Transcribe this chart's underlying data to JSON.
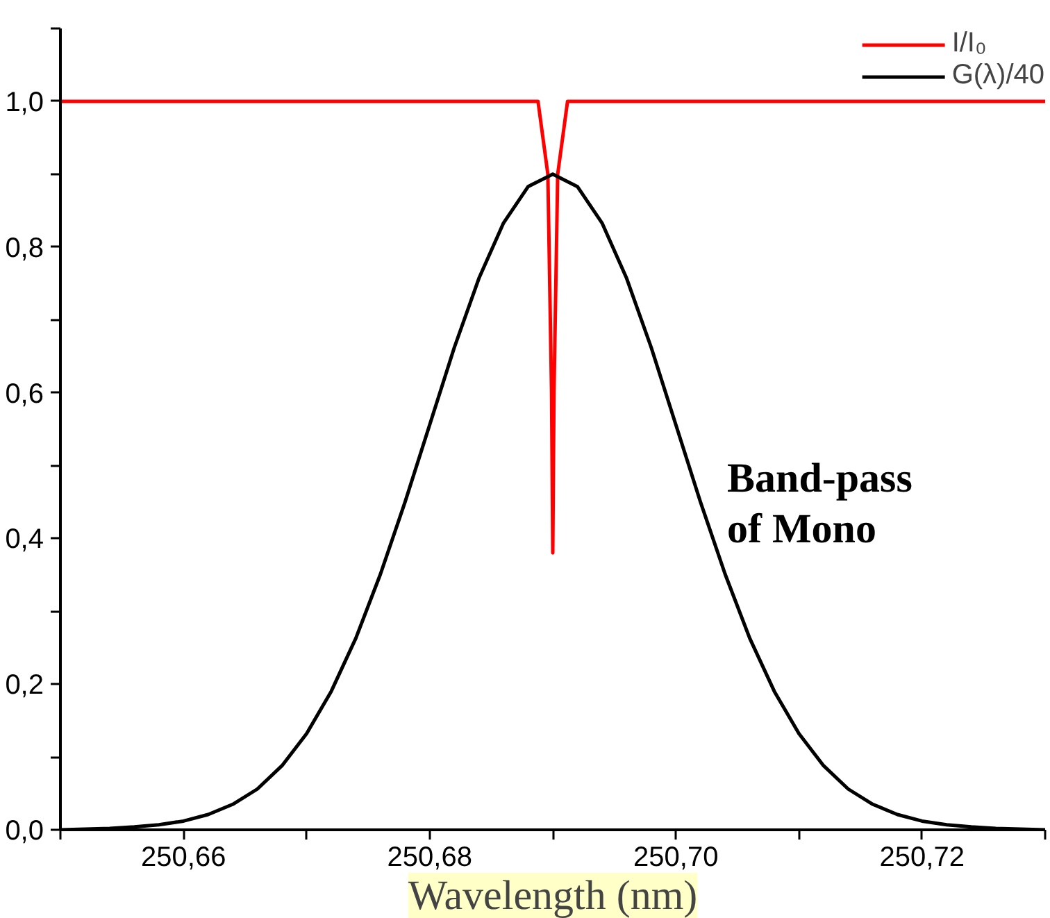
{
  "chart_data": {
    "type": "line",
    "xlabel": "Wavelength (nm)",
    "xlim": [
      250.65,
      250.73
    ],
    "ylim": [
      0,
      1.1
    ],
    "xticks": [
      {
        "value": 250.65,
        "label": null
      },
      {
        "value": 250.66,
        "label": "250,66"
      },
      {
        "value": 250.67,
        "label": null
      },
      {
        "value": 250.68,
        "label": "250,68"
      },
      {
        "value": 250.69,
        "label": null
      },
      {
        "value": 250.7,
        "label": "250,70"
      },
      {
        "value": 250.71,
        "label": null
      },
      {
        "value": 250.72,
        "label": "250,72"
      },
      {
        "value": 250.73,
        "label": null
      }
    ],
    "yticks": [
      {
        "value": 0,
        "label": "0,0"
      },
      {
        "value": 0.1,
        "label": null
      },
      {
        "value": 0.2,
        "label": "0,2"
      },
      {
        "value": 0.3,
        "label": null
      },
      {
        "value": 0.4,
        "label": "0,4"
      },
      {
        "value": 0.5,
        "label": null
      },
      {
        "value": 0.6,
        "label": "0,6"
      },
      {
        "value": 0.7,
        "label": null
      },
      {
        "value": 0.8,
        "label": "0,8"
      },
      {
        "value": 0.9,
        "label": null
      },
      {
        "value": 1.0,
        "label": "1,0"
      },
      {
        "value": 1.1,
        "label": null
      }
    ],
    "series": [
      {
        "name": "I/I₀",
        "color": "#ff0000",
        "x": [
          250.65,
          250.6888,
          250.6896,
          250.6899,
          250.69,
          250.6901,
          250.6904,
          250.6912,
          250.73
        ],
        "values": [
          1,
          1,
          0.9,
          0.6,
          0.38,
          0.6,
          0.9,
          1,
          1
        ]
      },
      {
        "name": "G(λ)/40",
        "color": "#000000",
        "x": [
          250.65,
          250.652,
          250.654,
          250.656,
          250.658,
          250.66,
          250.662,
          250.664,
          250.666,
          250.668,
          250.67,
          250.672,
          250.674,
          250.676,
          250.678,
          250.68,
          250.682,
          250.684,
          250.686,
          250.688,
          250.69,
          250.692,
          250.694,
          250.696,
          250.698,
          250.7,
          250.702,
          250.704,
          250.706,
          250.708,
          250.71,
          250.712,
          250.714,
          250.716,
          250.718,
          250.72,
          250.722,
          250.724,
          250.726,
          250.728,
          250.73
        ],
        "values": [
          0,
          0.001,
          0.002,
          0.004,
          0.007,
          0.012,
          0.021,
          0.035,
          0.056,
          0.088,
          0.132,
          0.19,
          0.263,
          0.351,
          0.45,
          0.556,
          0.662,
          0.757,
          0.833,
          0.883,
          0.9,
          0.883,
          0.833,
          0.757,
          0.662,
          0.556,
          0.45,
          0.351,
          0.263,
          0.19,
          0.132,
          0.088,
          0.056,
          0.035,
          0.021,
          0.012,
          0.007,
          0.004,
          0.002,
          0.001,
          0
        ]
      }
    ],
    "annotations": [
      "Band-pass\nof Mono"
    ],
    "legend": "top right",
    "grid": false,
    "marker": "none",
    "line_style": "solid"
  }
}
